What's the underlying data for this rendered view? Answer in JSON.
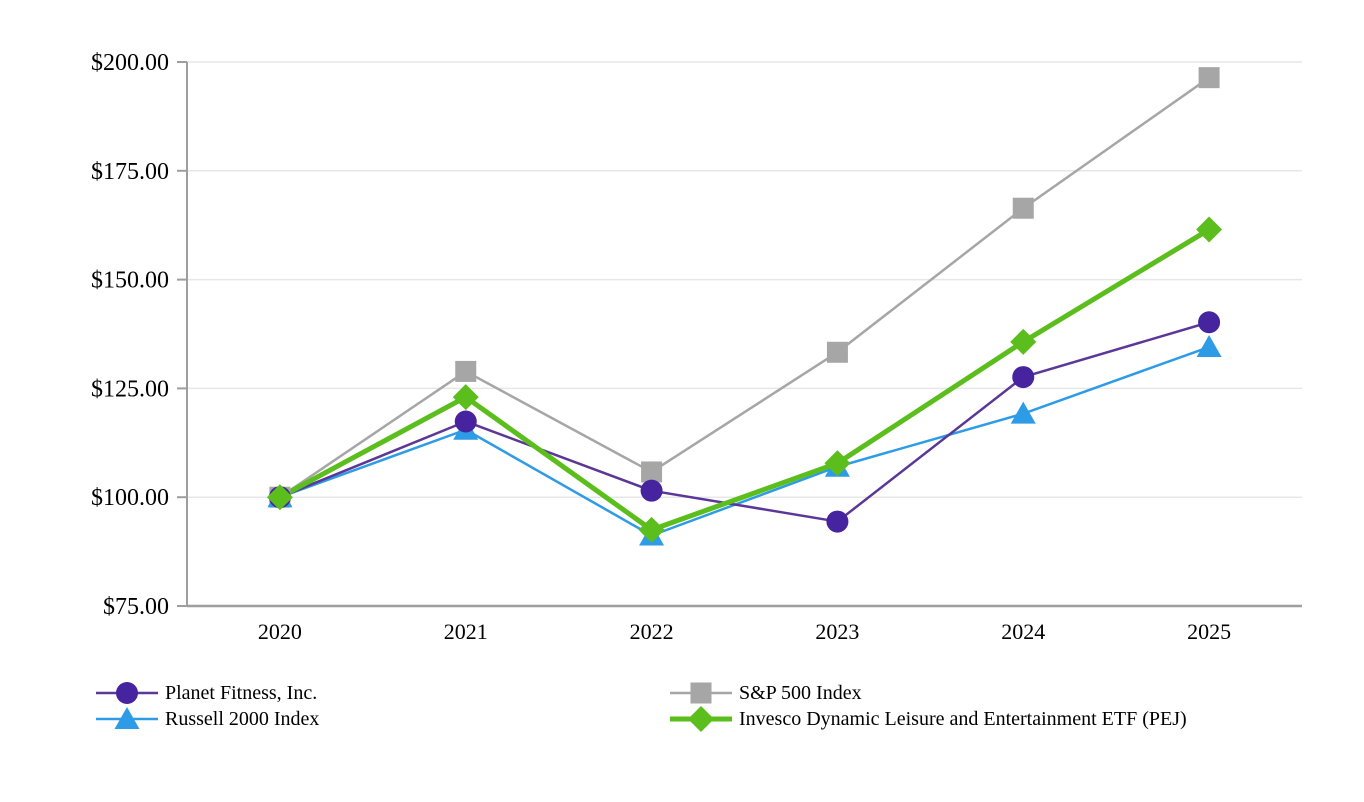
{
  "chart_data": {
    "type": "line",
    "title": "",
    "x_categories": [
      "2020",
      "2021",
      "2022",
      "2023",
      "2024",
      "2025"
    ],
    "y_axis": {
      "min": 75,
      "max": 200,
      "tick_values": [
        75,
        100,
        125,
        150,
        175,
        200
      ],
      "tick_labels": [
        "$75.00",
        "$100.00",
        "$125.00",
        "$150.00",
        "$175.00",
        "$200.00"
      ]
    },
    "grid": "horizontal",
    "legend_position": "bottom-two-columns",
    "series": [
      {
        "name": "S&P 500 Index",
        "marker": "square",
        "color": "#A6A6A6",
        "line_color": "#A6A6A6",
        "line_width": 2.5,
        "values": [
          100.0,
          128.9,
          105.8,
          133.3,
          166.4,
          196.4
        ]
      },
      {
        "name": "Russell 2000 Index",
        "marker": "triangle",
        "color": "#2E9BE6",
        "line_color": "#2E9BE6",
        "line_width": 2.5,
        "values": [
          100.0,
          115.5,
          91.2,
          107.0,
          119.2,
          134.5
        ]
      },
      {
        "name": "Planet Fitness, Inc.",
        "marker": "circle",
        "color": "#46239F",
        "line_color": "#5B3797",
        "line_width": 2.5,
        "values": [
          100.0,
          117.4,
          101.5,
          94.4,
          127.6,
          140.2
        ]
      },
      {
        "name": "Invesco Dynamic Leisure and Entertainment ETF (PEJ)",
        "marker": "diamond",
        "color": "#5BBE1D",
        "line_color": "#5BBE1D",
        "line_width": 5,
        "values": [
          100.0,
          123.0,
          92.5,
          107.8,
          135.7,
          161.5
        ]
      }
    ],
    "colors": {
      "gridline": "#E7E7E7",
      "axis": "#9E9E9E",
      "text": "#000000"
    }
  },
  "legend": {
    "columns": [
      {
        "items": [
          "Planet Fitness, Inc.",
          "Russell 2000 Index"
        ]
      },
      {
        "items": [
          "S&P 500 Index",
          "Invesco Dynamic Leisure and Entertainment ETF (PEJ)"
        ]
      }
    ]
  }
}
